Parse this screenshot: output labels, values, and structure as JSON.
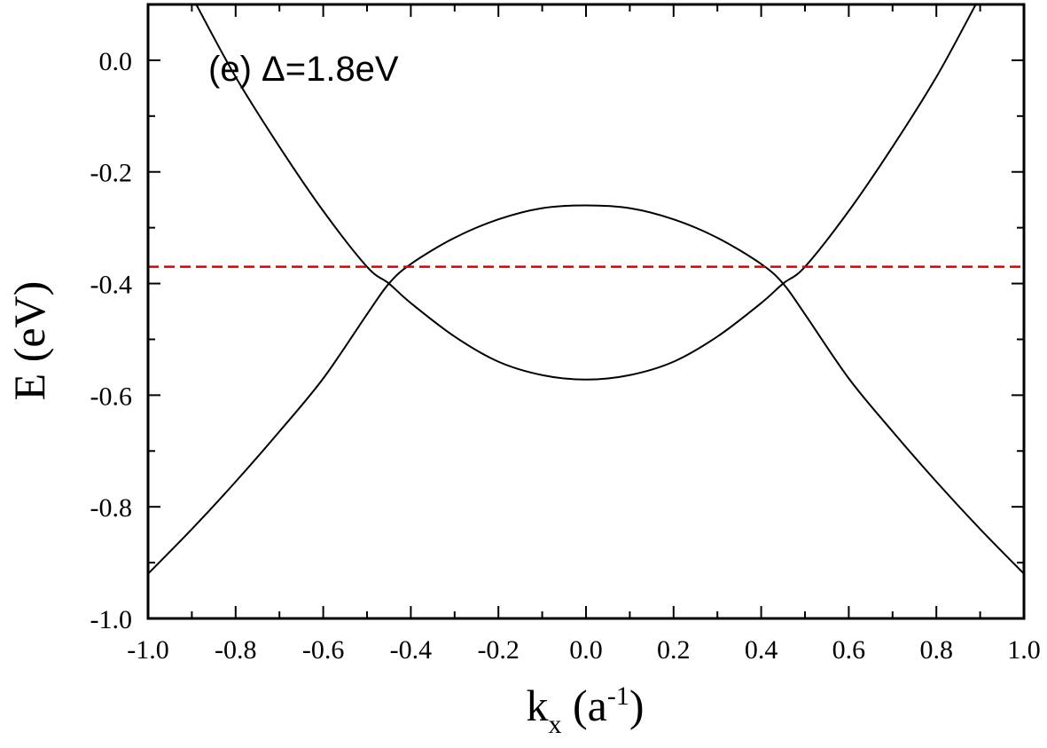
{
  "chart_data": {
    "type": "line",
    "annotation": "(e) Δ=1.8eV",
    "xlabel": {
      "main": "k",
      "sub": "x",
      "unit_open": " (a",
      "sup": "-1",
      "unit_close": ")"
    },
    "ylabel": "E (eV)",
    "xlim": [
      -1.0,
      1.0
    ],
    "ylim": [
      -1.0,
      0.1
    ],
    "x_ticks": [
      -1.0,
      -0.8,
      -0.6,
      -0.4,
      -0.2,
      0.0,
      0.2,
      0.4,
      0.6,
      0.8,
      1.0
    ],
    "x_tick_labels": [
      "-1.0",
      "-0.8",
      "-0.6",
      "-0.4",
      "-0.2",
      "0.0",
      "0.2",
      "0.4",
      "0.6",
      "0.8",
      "1.0"
    ],
    "y_ticks": [
      -1.0,
      -0.8,
      -0.6,
      -0.4,
      -0.2,
      0.0
    ],
    "y_tick_labels": [
      "-1.0",
      "-0.8",
      "-0.6",
      "-0.4",
      "-0.2",
      "0.0"
    ],
    "grid": false,
    "series": [
      {
        "style": "solid",
        "color": "#000000",
        "x": [
          -0.89,
          -0.8,
          -0.7,
          -0.6,
          -0.5,
          -0.45,
          -0.4,
          -0.3,
          -0.2,
          -0.1,
          0.0,
          0.1,
          0.2,
          0.3,
          0.4,
          0.45,
          0.5,
          0.6,
          0.7,
          0.8,
          0.89
        ],
        "y": [
          0.1,
          -0.03,
          -0.155,
          -0.27,
          -0.37,
          -0.4,
          -0.435,
          -0.495,
          -0.54,
          -0.564,
          -0.572,
          -0.564,
          -0.54,
          -0.495,
          -0.435,
          -0.4,
          -0.37,
          -0.27,
          -0.155,
          -0.03,
          0.1
        ]
      },
      {
        "style": "solid",
        "color": "#000000",
        "x": [
          -1.0,
          -0.9,
          -0.8,
          -0.7,
          -0.6,
          -0.5,
          -0.45,
          -0.4,
          -0.3,
          -0.2,
          -0.1,
          0.0,
          0.1,
          0.2,
          0.3,
          0.4,
          0.45,
          0.5,
          0.6,
          0.7,
          0.8,
          0.9,
          1.0
        ],
        "y": [
          -0.92,
          -0.84,
          -0.755,
          -0.665,
          -0.57,
          -0.455,
          -0.4,
          -0.365,
          -0.318,
          -0.285,
          -0.265,
          -0.26,
          -0.265,
          -0.285,
          -0.318,
          -0.365,
          -0.4,
          -0.455,
          -0.57,
          -0.665,
          -0.755,
          -0.84,
          -0.92
        ]
      },
      {
        "style": "dashed",
        "color": "#dd0000",
        "x": [
          -1.0,
          1.0
        ],
        "y": [
          -0.37,
          -0.37
        ]
      }
    ]
  }
}
